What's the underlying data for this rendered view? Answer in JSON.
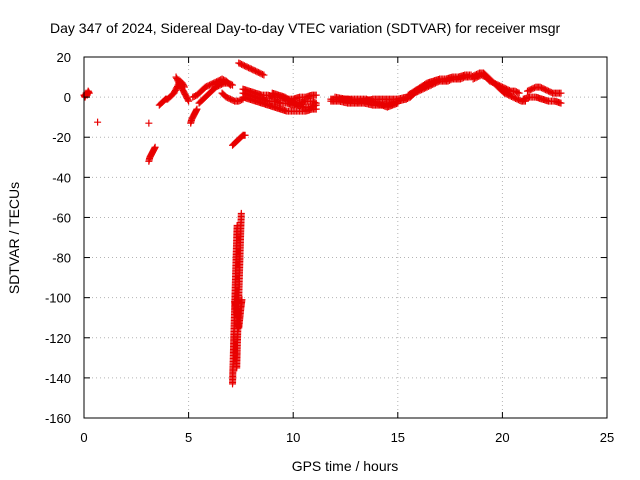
{
  "chart_data": {
    "type": "scatter",
    "title": "Day 347 of 2024, Sidereal Day-to-day VTEC variation (SDTVAR) for receiver msgr",
    "xlabel": "GPS time / hours",
    "ylabel": "SDTVAR / TECUs",
    "xlim": [
      0,
      25
    ],
    "ylim": [
      -160,
      20
    ],
    "xticks": [
      0,
      5,
      10,
      15,
      20,
      25
    ],
    "yticks": [
      -160,
      -140,
      -120,
      -100,
      -80,
      -60,
      -40,
      -20,
      0,
      20
    ],
    "grid": true,
    "marker": "+",
    "color": "#e80000",
    "series": [
      {
        "name": "SDTVAR",
        "segments": [
          [
            [
              0.0,
              1
            ],
            [
              0.05,
              0
            ],
            [
              0.1,
              2
            ],
            [
              0.15,
              1
            ],
            [
              0.2,
              3
            ],
            [
              0.25,
              2
            ]
          ],
          [
            [
              0.65,
              -12.5
            ]
          ],
          [
            [
              3.1,
              -13
            ]
          ],
          [
            [
              3.1,
              -32
            ],
            [
              3.15,
              -30
            ],
            [
              3.2,
              -29
            ],
            [
              3.25,
              -28
            ],
            [
              3.3,
              -27
            ],
            [
              3.35,
              -26
            ],
            [
              3.4,
              -25
            ]
          ],
          [
            [
              3.6,
              -4
            ],
            [
              3.7,
              -3
            ],
            [
              3.8,
              -2
            ],
            [
              3.9,
              -1
            ],
            [
              4.0,
              -1
            ],
            [
              4.1,
              0
            ],
            [
              4.2,
              1
            ],
            [
              4.3,
              2
            ],
            [
              4.4,
              4
            ],
            [
              4.5,
              6
            ],
            [
              4.6,
              8
            ],
            [
              4.7,
              7
            ],
            [
              4.8,
              5
            ]
          ],
          [
            [
              4.4,
              10
            ],
            [
              4.5,
              8
            ],
            [
              4.6,
              6
            ],
            [
              4.7,
              4
            ],
            [
              4.8,
              2
            ],
            [
              4.9,
              0
            ],
            [
              5.0,
              -2
            ]
          ],
          [
            [
              5.1,
              -13
            ],
            [
              5.15,
              -11
            ],
            [
              5.2,
              -10
            ],
            [
              5.25,
              -9
            ],
            [
              5.3,
              -8
            ],
            [
              5.35,
              -7
            ],
            [
              5.4,
              -6
            ]
          ],
          [
            [
              5.2,
              0
            ],
            [
              5.4,
              1
            ],
            [
              5.6,
              3
            ],
            [
              5.8,
              5
            ],
            [
              6.0,
              6
            ],
            [
              6.2,
              7
            ],
            [
              6.4,
              8
            ],
            [
              6.6,
              9
            ],
            [
              6.8,
              8
            ],
            [
              7.0,
              6
            ]
          ],
          [
            [
              5.5,
              -3
            ],
            [
              5.7,
              -1
            ],
            [
              5.9,
              1
            ],
            [
              6.1,
              3
            ],
            [
              6.3,
              5
            ],
            [
              6.5,
              6
            ],
            [
              6.7,
              7
            ],
            [
              6.9,
              7
            ],
            [
              7.1,
              6
            ]
          ],
          [
            [
              6.6,
              2
            ],
            [
              6.8,
              0
            ],
            [
              7.0,
              -1
            ],
            [
              7.2,
              -2
            ],
            [
              7.4,
              -2
            ],
            [
              7.6,
              -1
            ]
          ],
          [
            [
              7.1,
              -143
            ],
            [
              7.12,
              -135
            ],
            [
              7.14,
              -128
            ],
            [
              7.16,
              -120
            ],
            [
              7.18,
              -113
            ],
            [
              7.2,
              -106
            ],
            [
              7.22,
              -98
            ],
            [
              7.24,
              -91
            ],
            [
              7.26,
              -84
            ],
            [
              7.28,
              -77
            ],
            [
              7.3,
              -70
            ],
            [
              7.32,
              -64
            ]
          ],
          [
            [
              7.3,
              -135
            ],
            [
              7.32,
              -127
            ],
            [
              7.34,
              -120
            ],
            [
              7.36,
              -113
            ],
            [
              7.38,
              -106
            ],
            [
              7.4,
              -99
            ],
            [
              7.42,
              -92
            ],
            [
              7.44,
              -85
            ],
            [
              7.46,
              -78
            ],
            [
              7.48,
              -71
            ],
            [
              7.5,
              -64
            ],
            [
              7.52,
              -58
            ]
          ],
          [
            [
              7.2,
              -102
            ],
            [
              7.25,
              -104
            ],
            [
              7.3,
              -108
            ],
            [
              7.35,
              -112
            ],
            [
              7.4,
              -115
            ],
            [
              7.45,
              -110
            ],
            [
              7.5,
              -105
            ],
            [
              7.55,
              -101
            ]
          ],
          [
            [
              7.1,
              -24
            ],
            [
              7.2,
              -23
            ],
            [
              7.3,
              -22
            ],
            [
              7.4,
              -21
            ],
            [
              7.5,
              -20
            ],
            [
              7.6,
              -19
            ],
            [
              7.7,
              -19
            ]
          ],
          [
            [
              7.4,
              17
            ],
            [
              7.6,
              16
            ],
            [
              7.8,
              15
            ],
            [
              8.0,
              14
            ],
            [
              8.2,
              13
            ],
            [
              8.4,
              12
            ],
            [
              8.6,
              11
            ]
          ],
          [
            [
              7.6,
              4
            ],
            [
              7.9,
              3
            ],
            [
              8.2,
              2
            ],
            [
              8.5,
              1
            ],
            [
              8.8,
              1
            ],
            [
              9.1,
              0
            ],
            [
              9.4,
              0
            ],
            [
              9.7,
              -1
            ],
            [
              10.0,
              -1
            ],
            [
              10.3,
              0
            ],
            [
              10.6,
              0
            ],
            [
              10.9,
              1
            ],
            [
              11.1,
              1
            ]
          ],
          [
            [
              7.6,
              0
            ],
            [
              7.9,
              -1
            ],
            [
              8.2,
              -2
            ],
            [
              8.5,
              -3
            ],
            [
              8.8,
              -4
            ],
            [
              9.1,
              -5
            ],
            [
              9.4,
              -6
            ],
            [
              9.7,
              -7
            ],
            [
              10.0,
              -7
            ],
            [
              10.3,
              -7
            ],
            [
              10.6,
              -7
            ],
            [
              10.9,
              -6
            ],
            [
              11.1,
              -6
            ]
          ],
          [
            [
              7.6,
              2
            ],
            [
              7.9,
              1
            ],
            [
              8.2,
              0
            ],
            [
              8.5,
              -1
            ],
            [
              8.8,
              -2
            ],
            [
              9.1,
              -2
            ],
            [
              9.4,
              -3
            ],
            [
              9.7,
              -3
            ],
            [
              10.0,
              -4
            ],
            [
              10.3,
              -3
            ],
            [
              10.6,
              -2
            ],
            [
              10.9,
              -2
            ],
            [
              11.1,
              -3
            ]
          ],
          [
            [
              9.0,
              2
            ],
            [
              9.3,
              1
            ],
            [
              9.6,
              0
            ],
            [
              9.9,
              -2
            ],
            [
              10.2,
              -4
            ],
            [
              10.5,
              -5
            ],
            [
              10.8,
              -5
            ],
            [
              11.1,
              -4
            ]
          ],
          [
            [
              11.8,
              -1
            ],
            [
              12.2,
              -1
            ],
            [
              12.6,
              -1
            ],
            [
              13.0,
              -2
            ],
            [
              13.4,
              -2
            ],
            [
              13.8,
              -1
            ],
            [
              14.2,
              -1
            ],
            [
              14.6,
              -1
            ],
            [
              15.0,
              -1
            ],
            [
              15.4,
              0
            ]
          ],
          [
            [
              11.8,
              -2
            ],
            [
              12.2,
              -2
            ],
            [
              12.6,
              -3
            ],
            [
              13.0,
              -3
            ],
            [
              13.4,
              -3
            ],
            [
              13.8,
              -4
            ],
            [
              14.2,
              -4
            ],
            [
              14.6,
              -3
            ],
            [
              15.0,
              -2
            ],
            [
              15.4,
              -1
            ]
          ],
          [
            [
              12.0,
              0
            ],
            [
              12.5,
              -1
            ],
            [
              13.0,
              -1
            ],
            [
              13.5,
              -1
            ],
            [
              14.0,
              -3
            ],
            [
              14.5,
              -5
            ],
            [
              15.0,
              -3
            ]
          ],
          [
            [
              15.4,
              -1
            ],
            [
              15.6,
              0
            ],
            [
              15.8,
              2
            ],
            [
              16.0,
              3
            ],
            [
              16.2,
              4
            ],
            [
              16.4,
              5
            ],
            [
              16.6,
              6
            ],
            [
              16.8,
              7
            ],
            [
              17.0,
              8
            ],
            [
              17.2,
              8
            ],
            [
              17.4,
              8
            ],
            [
              17.6,
              9
            ],
            [
              17.8,
              9
            ],
            [
              18.0,
              9
            ],
            [
              18.2,
              10
            ],
            [
              18.4,
              10
            ]
          ],
          [
            [
              15.5,
              1
            ],
            [
              15.8,
              3
            ],
            [
              16.1,
              5
            ],
            [
              16.4,
              7
            ],
            [
              16.7,
              8
            ],
            [
              17.0,
              9
            ],
            [
              17.3,
              9
            ],
            [
              17.6,
              10
            ],
            [
              17.9,
              10
            ],
            [
              18.2,
              11
            ],
            [
              18.5,
              11
            ]
          ],
          [
            [
              18.5,
              10
            ],
            [
              18.7,
              11
            ],
            [
              18.9,
              12
            ],
            [
              19.1,
              12
            ],
            [
              19.3,
              10
            ],
            [
              19.5,
              8
            ],
            [
              19.7,
              6
            ],
            [
              19.9,
              4
            ],
            [
              20.1,
              2
            ],
            [
              20.3,
              1
            ],
            [
              20.5,
              0
            ],
            [
              20.7,
              -1
            ],
            [
              20.9,
              -2
            ],
            [
              21.1,
              -2
            ]
          ],
          [
            [
              18.6,
              9
            ],
            [
              18.8,
              10
            ],
            [
              19.0,
              11
            ],
            [
              19.2,
              10
            ],
            [
              19.4,
              8
            ],
            [
              19.6,
              7
            ],
            [
              19.8,
              6
            ],
            [
              20.0,
              5
            ],
            [
              20.2,
              4
            ],
            [
              20.4,
              3
            ],
            [
              20.6,
              3
            ],
            [
              20.8,
              2
            ]
          ],
          [
            [
              21.2,
              3
            ],
            [
              21.4,
              4
            ],
            [
              21.6,
              5
            ],
            [
              21.8,
              5
            ],
            [
              22.0,
              4
            ],
            [
              22.2,
              3
            ],
            [
              22.4,
              2
            ],
            [
              22.6,
              2
            ],
            [
              22.8,
              2
            ]
          ],
          [
            [
              21.0,
              -1
            ],
            [
              21.3,
              0
            ],
            [
              21.6,
              0
            ],
            [
              21.9,
              -1
            ],
            [
              22.2,
              -2
            ],
            [
              22.5,
              -2
            ],
            [
              22.8,
              -3
            ]
          ]
        ]
      }
    ]
  }
}
